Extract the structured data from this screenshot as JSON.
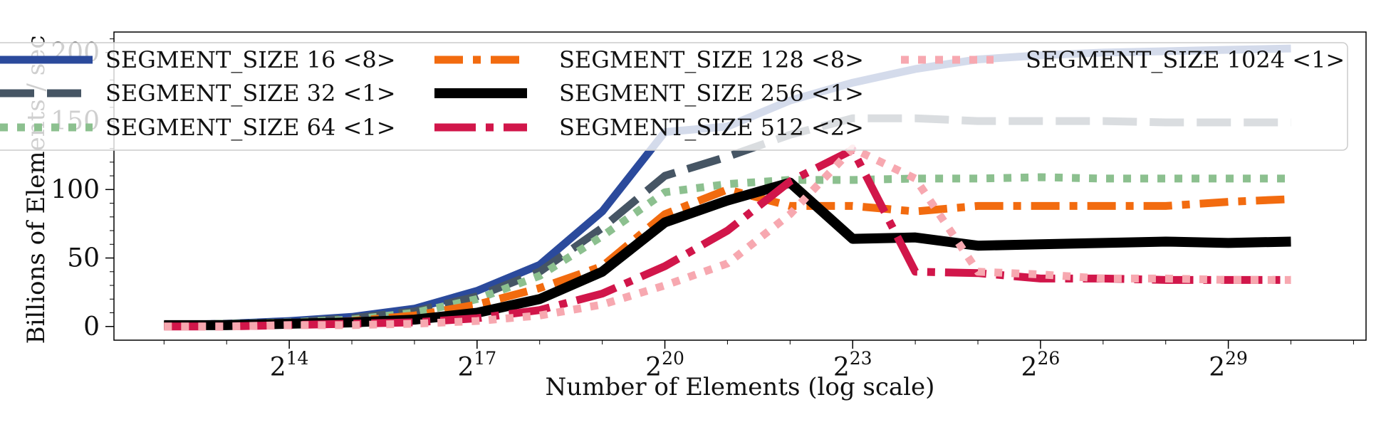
{
  "chart_data": {
    "type": "line",
    "title": "",
    "xlabel": "Number of Elements (log scale)",
    "ylabel": "Billions of Elements / sec",
    "x_scale": "log2",
    "x_exponents": [
      12,
      13,
      14,
      15,
      16,
      17,
      18,
      19,
      20,
      21,
      22,
      23,
      24,
      25,
      26,
      27,
      28,
      29,
      30
    ],
    "x_tick_labels": [
      {
        "exp": 14,
        "base": "2",
        "sup": "14"
      },
      {
        "exp": 17,
        "base": "2",
        "sup": "17"
      },
      {
        "exp": 20,
        "base": "2",
        "sup": "20"
      },
      {
        "exp": 23,
        "base": "2",
        "sup": "23"
      },
      {
        "exp": 26,
        "base": "2",
        "sup": "26"
      },
      {
        "exp": 29,
        "base": "2",
        "sup": "29"
      }
    ],
    "xlim": [
      11.2,
      31.2
    ],
    "ylim": [
      -10,
      215
    ],
    "y_ticks": [
      0,
      50,
      100,
      150,
      200
    ],
    "grid": false,
    "legend": {
      "placement": "top",
      "columns": 3
    },
    "series": [
      {
        "name": "SEGMENT_SIZE 16 <8>",
        "color": "#2b4a9c",
        "dash": "solid",
        "width": 11,
        "values": [
          1,
          2,
          4,
          7,
          13,
          26,
          45,
          84,
          142,
          146,
          165,
          178,
          188,
          195,
          198,
          200,
          201,
          202,
          203
        ]
      },
      {
        "name": "SEGMENT_SIZE 32 <1>",
        "color": "#465564",
        "dash": "long-dash",
        "width": 11,
        "values": [
          1,
          2,
          3,
          6,
          11,
          22,
          40,
          72,
          110,
          124,
          140,
          152,
          152,
          150,
          150,
          150,
          149,
          149,
          149
        ]
      },
      {
        "name": "SEGMENT_SIZE 64 <1>",
        "color": "#8cc08f",
        "dash": "dotted",
        "width": 11,
        "values": [
          1,
          2,
          3,
          5,
          10,
          20,
          37,
          66,
          98,
          104,
          107,
          107,
          108,
          108,
          109,
          108,
          108,
          108,
          108
        ]
      },
      {
        "name": "SEGMENT_SIZE 128 <8>",
        "color": "#f26b0f",
        "dash": "dash-dot",
        "width": 11,
        "values": [
          1,
          1,
          2,
          4,
          8,
          16,
          28,
          44,
          82,
          100,
          88,
          88,
          84,
          88,
          88,
          88,
          88,
          91,
          93
        ]
      },
      {
        "name": "SEGMENT_SIZE 256 <1>",
        "color": "#000000",
        "dash": "solid",
        "width": 14,
        "values": [
          1,
          1,
          2,
          3,
          5,
          10,
          20,
          40,
          76,
          92,
          105,
          64,
          65,
          59,
          60,
          61,
          62,
          61,
          62
        ]
      },
      {
        "name": "SEGMENT_SIZE 512 <2>",
        "color": "#d1164a",
        "dash": "long-dash-dot",
        "width": 11,
        "values": [
          0,
          0,
          1,
          2,
          3,
          6,
          12,
          24,
          44,
          70,
          106,
          129,
          40,
          39,
          35,
          35,
          34,
          34,
          34
        ]
      },
      {
        "name": "SEGMENT_SIZE 1024 <1>",
        "color": "#f7a8b0",
        "dash": "dotted",
        "width": 11,
        "values": [
          0,
          0,
          1,
          1,
          2,
          4,
          8,
          16,
          30,
          46,
          82,
          130,
          108,
          40,
          38,
          35,
          35,
          34,
          34
        ]
      }
    ]
  }
}
